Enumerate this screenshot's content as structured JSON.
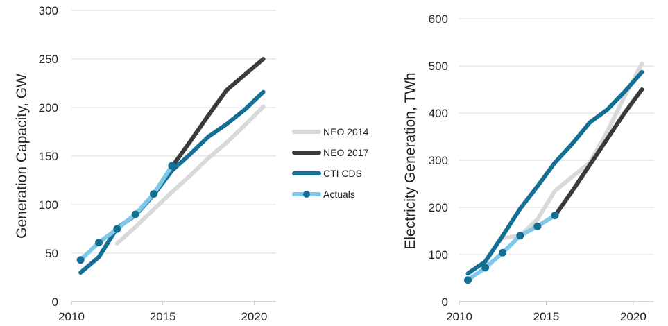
{
  "legend": {
    "entries": [
      {
        "series": "NEO 2014",
        "color": "#d9d9d9"
      },
      {
        "series": "NEO 2017",
        "color": "#3a3a3a"
      },
      {
        "series": "CTI CDS",
        "color": "#136f93"
      },
      {
        "series": "Actuals",
        "color": "#7fc8ea",
        "marker": "circle",
        "marker_color": "#136f93"
      }
    ],
    "placement": "center, between the two charts"
  },
  "chart_data": [
    {
      "type": "line",
      "title": "",
      "xlabel": "",
      "ylabel": "Generation Capacity, GW",
      "xlim": [
        2010,
        2021.2
      ],
      "ylim": [
        0,
        300
      ],
      "xticks": [
        "2010",
        "2015",
        "2020"
      ],
      "yticks": [
        "0",
        "50",
        "100",
        "150",
        "200",
        "250",
        "300"
      ],
      "grid": "horizontal",
      "series": [
        {
          "name": "NEO 2014",
          "color": "#d9d9d9",
          "x": [
            2012.5,
            2013.5,
            2014.5,
            2015.5,
            2016.5,
            2017.5,
            2018.5,
            2019.5,
            2020.5
          ],
          "y": [
            60,
            77,
            95,
            113,
            130,
            148,
            164,
            182,
            201
          ]
        },
        {
          "name": "NEO 2017",
          "color": "#3a3a3a",
          "x": [
            2015.5,
            2016.5,
            2017.5,
            2018.5,
            2019.5,
            2020.5
          ],
          "y": [
            139,
            165,
            192,
            218,
            234,
            250
          ]
        },
        {
          "name": "CTI CDS",
          "color": "#136f93",
          "x": [
            2010.5,
            2011.5,
            2012.5,
            2013.5,
            2014.5,
            2015.5,
            2016.5,
            2017.5,
            2018.5,
            2019.5,
            2020.5
          ],
          "y": [
            30,
            46,
            76,
            89,
            110,
            135,
            152,
            170,
            183,
            198,
            216
          ]
        },
        {
          "name": "Actuals",
          "color": "#7fc8ea",
          "marker": "circle",
          "x": [
            2010.5,
            2011.5,
            2012.5,
            2013.5,
            2014.5,
            2015.5
          ],
          "y": [
            43,
            61,
            75,
            90,
            111,
            140
          ]
        }
      ]
    },
    {
      "type": "line",
      "title": "",
      "xlabel": "",
      "ylabel": "Electricity Generation, TWh",
      "xlim": [
        2010,
        2021.2
      ],
      "ylim": [
        0,
        600
      ],
      "xticks": [
        "2010",
        "2015",
        "2020"
      ],
      "yticks": [
        "0",
        "100",
        "200",
        "300",
        "400",
        "500",
        "600"
      ],
      "grid": "horizontal",
      "series": [
        {
          "name": "NEO 2014",
          "color": "#d9d9d9",
          "x": [
            2012.5,
            2013.5,
            2014.5,
            2015.5,
            2016.5,
            2017.5,
            2018.5,
            2019.5,
            2020.5
          ],
          "y": [
            135,
            140,
            175,
            235,
            265,
            295,
            360,
            435,
            505
          ]
        },
        {
          "name": "NEO 2017",
          "color": "#3a3a3a",
          "x": [
            2015.5,
            2016.5,
            2017.5,
            2018.5,
            2019.5,
            2020.5
          ],
          "y": [
            182,
            235,
            290,
            345,
            400,
            450
          ]
        },
        {
          "name": "CTI CDS",
          "color": "#136f93",
          "x": [
            2010.5,
            2011.5,
            2012.5,
            2013.5,
            2014.5,
            2015.5,
            2016.5,
            2017.5,
            2018.5,
            2019.5,
            2020.5
          ],
          "y": [
            60,
            85,
            140,
            197,
            245,
            295,
            335,
            380,
            407,
            445,
            487
          ]
        },
        {
          "name": "Actuals",
          "color": "#7fc8ea",
          "marker": "circle",
          "x": [
            2010.5,
            2011.5,
            2012.5,
            2013.5,
            2014.5,
            2015.5
          ],
          "y": [
            46,
            72,
            104,
            140,
            160,
            183
          ]
        }
      ]
    }
  ]
}
